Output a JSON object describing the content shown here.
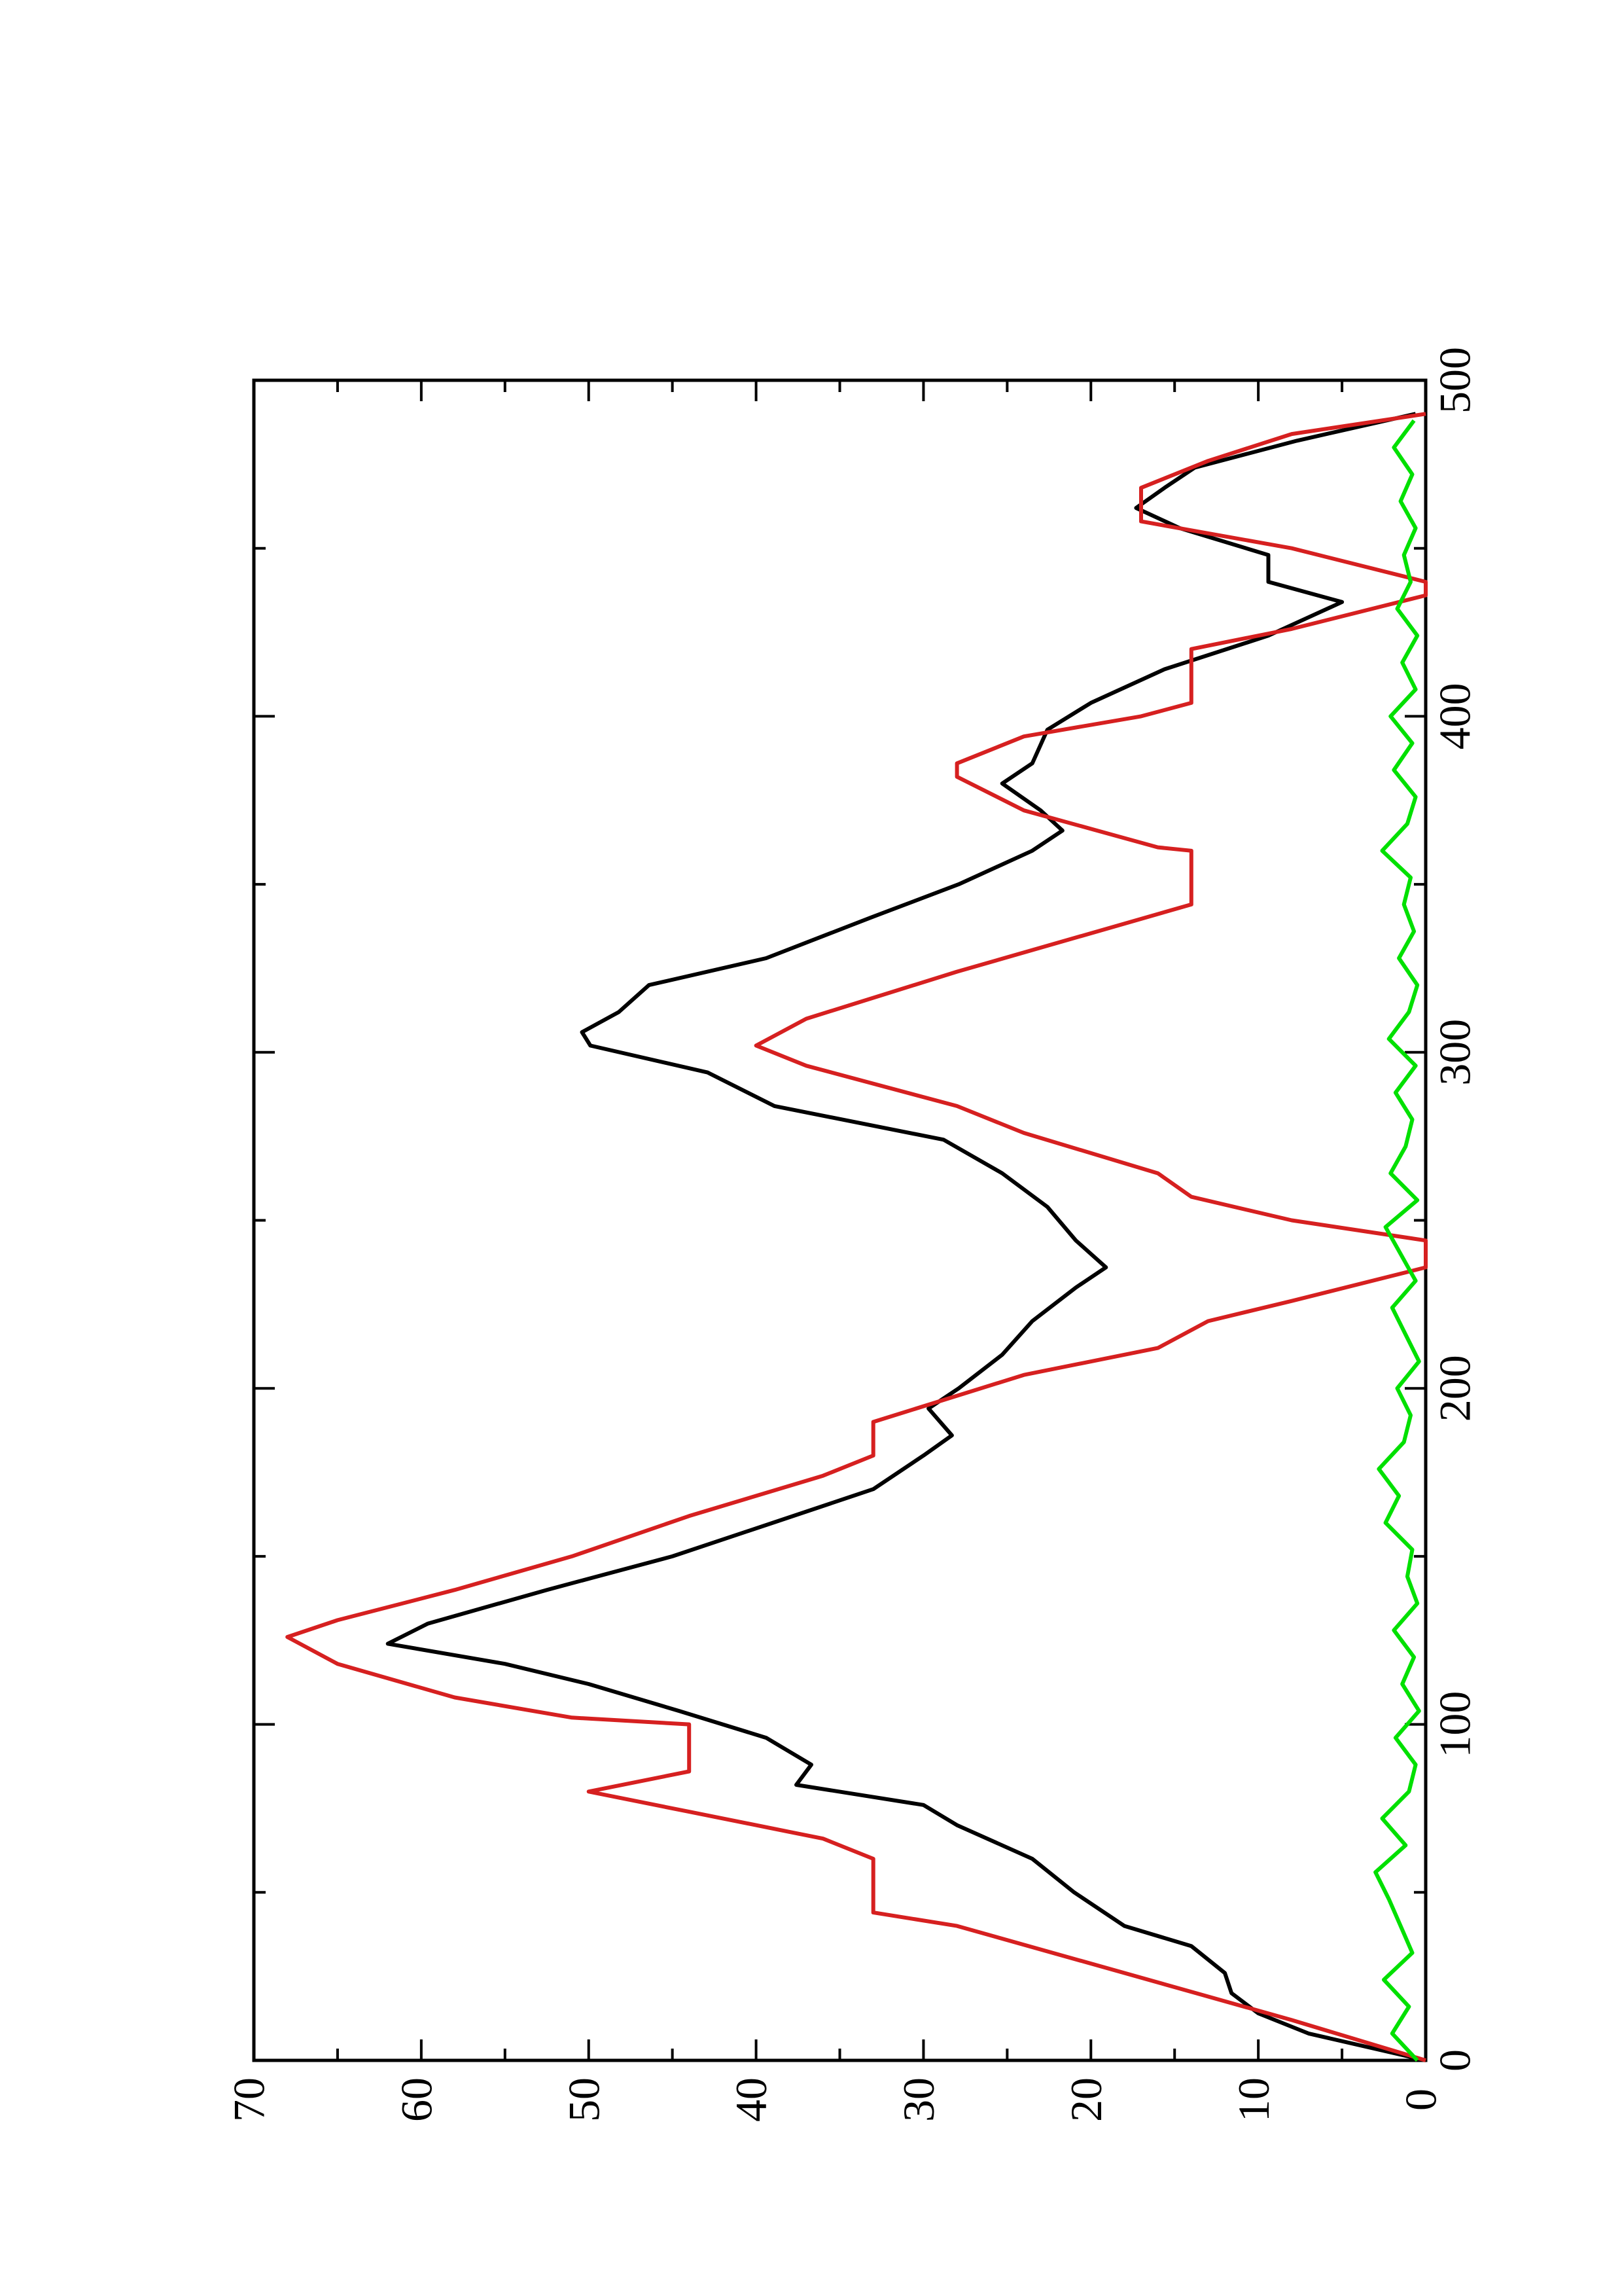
{
  "chart_data": {
    "type": "line",
    "xlim": [
      0,
      500
    ],
    "xticks": [
      0,
      100,
      200,
      300,
      400,
      500
    ],
    "xminor_ticks": [
      50,
      150,
      250,
      350,
      450
    ],
    "ylim": [
      0,
      70
    ],
    "yticks": [
      0,
      10,
      20,
      30,
      40,
      50,
      60,
      70
    ],
    "yminor_ticks": [
      5,
      15,
      25,
      35,
      45,
      55,
      65
    ],
    "series": [
      {
        "color": "#000000",
        "x": [
          0,
          8,
          14,
          20,
          26,
          34,
          40,
          50,
          60,
          70,
          76,
          82,
          88,
          96,
          104,
          112,
          118,
          124,
          130,
          140,
          150,
          160,
          170,
          180,
          186,
          194,
          200,
          210,
          220,
          230,
          236,
          244,
          254,
          264,
          274,
          284,
          294,
          302,
          306,
          312,
          320,
          328,
          340,
          350,
          360,
          366,
          372,
          380,
          386,
          396,
          404,
          414,
          424,
          434,
          440,
          448,
          456,
          462,
          468,
          474,
          482,
          490
        ],
        "values": [
          0,
          7,
          10,
          11.6,
          12,
          14,
          18,
          21,
          23.5,
          28,
          30,
          37.6,
          36.7,
          39.4,
          44.6,
          50,
          55,
          62,
          59.6,
          52.5,
          45,
          39,
          33,
          30,
          28.3,
          29.7,
          27.9,
          25.3,
          23.5,
          20.9,
          19.1,
          20.9,
          22.6,
          25.3,
          28.8,
          38.9,
          42.9,
          49.9,
          50.4,
          48.2,
          46.4,
          39.4,
          33.2,
          27.9,
          23.5,
          21.7,
          23,
          25.3,
          23.5,
          22.6,
          20,
          15.6,
          9.4,
          5,
          9.4,
          9.4,
          14.7,
          17.3,
          15.6,
          13.8,
          7.7,
          0.6
        ]
      },
      {
        "color": "#d62020",
        "x": [
          0,
          12,
          40,
          44,
          60,
          66,
          68,
          74,
          80,
          86,
          100,
          102,
          108,
          118,
          126,
          131,
          140,
          150,
          162,
          174,
          180,
          190,
          204,
          212,
          220,
          226,
          236,
          244,
          250,
          257,
          264,
          276,
          284,
          296,
          302,
          310,
          324,
          344,
          360,
          361,
          372,
          382,
          386,
          394,
          400,
          404,
          420,
          426,
          436,
          440,
          450,
          458,
          468,
          476,
          484,
          490
        ],
        "values": [
          0,
          8,
          28,
          33,
          33,
          36,
          38,
          44,
          50,
          44,
          44,
          51,
          58,
          65,
          68,
          65,
          58,
          51,
          44,
          36,
          33,
          33,
          24,
          16,
          13,
          8,
          0,
          0,
          8,
          14,
          16,
          24,
          28,
          37,
          40,
          37,
          28,
          14,
          14,
          16,
          24,
          28,
          28,
          24,
          17,
          14,
          14,
          8,
          0,
          0,
          8,
          17,
          17,
          13,
          8,
          0
        ]
      },
      {
        "color": "#00e000",
        "x": [
          0,
          8,
          16,
          24,
          32,
          40,
          48,
          56,
          64,
          72,
          80,
          88,
          96,
          104,
          112,
          120,
          128,
          136,
          144,
          152,
          160,
          168,
          176,
          184,
          192,
          200,
          208,
          216,
          224,
          232,
          240,
          248,
          256,
          264,
          272,
          280,
          288,
          296,
          304,
          312,
          320,
          328,
          336,
          344,
          352,
          360,
          368,
          376,
          384,
          392,
          400,
          408,
          416,
          424,
          432,
          440,
          448,
          456,
          464,
          472,
          480,
          488
        ],
        "values": [
          0.5,
          2,
          1,
          2.5,
          0.8,
          1.5,
          2.2,
          3,
          1.2,
          2.6,
          1,
          0.6,
          1.8,
          0.4,
          1.4,
          0.7,
          1.9,
          0.5,
          1.1,
          0.8,
          2.4,
          1.6,
          2.8,
          1.3,
          0.9,
          1.7,
          0.4,
          1.2,
          2,
          0.6,
          1.5,
          2.4,
          0.5,
          2.1,
          1.2,
          0.8,
          1.8,
          0.6,
          2.2,
          1,
          0.5,
          1.6,
          0.7,
          1.3,
          0.9,
          2.6,
          1.1,
          0.6,
          1.9,
          0.8,
          2.1,
          0.6,
          1.4,
          0.5,
          1.7,
          0.9,
          1.3,
          0.6,
          1.5,
          0.8,
          1.9,
          0.7
        ]
      }
    ]
  }
}
